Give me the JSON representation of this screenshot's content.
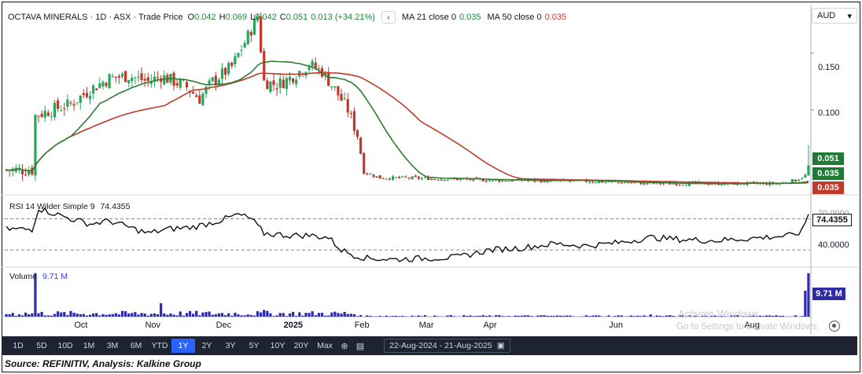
{
  "header": {
    "symbol": "OCTAVA MINERALS · 1D · ASX · Trade Price",
    "open_label": "O",
    "open": "0.042",
    "high_label": "H",
    "high": "0.069",
    "low_label": "L",
    "low": "0.042",
    "close_label": "C",
    "close": "0.051",
    "change": "0.013 (+34.21%)",
    "collapse_glyph": "‹",
    "ma21_label": "MA 21 close 0",
    "ma21_value": "0.035",
    "ma50_label": "MA 50 close 0",
    "ma50_value": "0.035"
  },
  "currency": {
    "label": "AUD",
    "glyph": "▾"
  },
  "price_tags": {
    "last": "0.051",
    "ma21": "0.035",
    "ma50": "0.035",
    "last_color": "#1e7a34",
    "ma21_color": "#1e7a34",
    "ma50_color": "#c0392b"
  },
  "rsi": {
    "label": "RSI 14 Wilder Simple 9",
    "value": "74.4355",
    "level_upper_label": "70.0000",
    "level_lower_label": "40.0000"
  },
  "volume": {
    "label": "Volume",
    "value": "9.71 M",
    "tag": "9.71 M",
    "bar_color": "#2c2ca8"
  },
  "toolbar": {
    "timeframes": [
      "1D",
      "5D",
      "10D",
      "1M",
      "3M",
      "6M",
      "YTD",
      "1Y",
      "2Y",
      "3Y",
      "5Y",
      "10Y",
      "20Y",
      "Max"
    ],
    "active": "1Y",
    "range": "22-Aug-2024 - 21-Aug-2025"
  },
  "watermark": {
    "line1": "Activate Windows",
    "line2": "Go to Settings to activate Windows."
  },
  "source": "Source: REFINITIV, Analysis: Kalkine Group",
  "chart_data": {
    "type": "candlestick",
    "y_ticks": [
      0.1,
      0.15
    ],
    "y_tick_labels": [
      "0.100",
      "0.150"
    ],
    "ylim": [
      0.025,
      0.19
    ],
    "x_tick_labels": [
      "Oct",
      "Nov",
      "Dec",
      "2025",
      "Feb",
      "Mar",
      "Apr",
      "Jun",
      "Aug"
    ],
    "x_tick_index": [
      24,
      46,
      68,
      89,
      111,
      131,
      151,
      190,
      232
    ],
    "n_bars": 250,
    "price_anchors": [
      [
        0,
        0.047
      ],
      [
        8,
        0.047
      ],
      [
        9,
        0.095
      ],
      [
        14,
        0.1
      ],
      [
        20,
        0.105
      ],
      [
        26,
        0.118
      ],
      [
        32,
        0.128
      ],
      [
        38,
        0.13
      ],
      [
        44,
        0.125
      ],
      [
        48,
        0.13
      ],
      [
        52,
        0.125
      ],
      [
        56,
        0.12
      ],
      [
        60,
        0.11
      ],
      [
        64,
        0.125
      ],
      [
        70,
        0.138
      ],
      [
        75,
        0.165
      ],
      [
        78,
        0.183
      ],
      [
        80,
        0.125
      ],
      [
        84,
        0.122
      ],
      [
        88,
        0.128
      ],
      [
        94,
        0.14
      ],
      [
        98,
        0.134
      ],
      [
        102,
        0.118
      ],
      [
        106,
        0.1
      ],
      [
        109,
        0.078
      ],
      [
        111,
        0.045
      ],
      [
        116,
        0.04
      ],
      [
        124,
        0.04
      ],
      [
        150,
        0.038
      ],
      [
        180,
        0.037
      ],
      [
        200,
        0.035
      ],
      [
        240,
        0.035
      ],
      [
        245,
        0.038
      ],
      [
        248,
        0.042
      ],
      [
        249,
        0.051
      ]
    ],
    "rsi_anchors": [
      [
        0,
        60
      ],
      [
        8,
        60
      ],
      [
        10,
        80
      ],
      [
        14,
        76
      ],
      [
        20,
        70
      ],
      [
        26,
        65
      ],
      [
        32,
        68
      ],
      [
        38,
        62
      ],
      [
        44,
        56
      ],
      [
        50,
        60
      ],
      [
        58,
        62
      ],
      [
        66,
        68
      ],
      [
        72,
        74
      ],
      [
        76,
        70
      ],
      [
        80,
        56
      ],
      [
        88,
        54
      ],
      [
        94,
        54
      ],
      [
        100,
        52
      ],
      [
        104,
        40
      ],
      [
        108,
        35
      ],
      [
        112,
        32
      ],
      [
        120,
        31
      ],
      [
        130,
        32
      ],
      [
        140,
        33
      ],
      [
        150,
        40
      ],
      [
        160,
        42
      ],
      [
        170,
        46
      ],
      [
        180,
        44
      ],
      [
        190,
        47
      ],
      [
        200,
        52
      ],
      [
        210,
        50
      ],
      [
        220,
        49
      ],
      [
        230,
        51
      ],
      [
        244,
        54
      ],
      [
        247,
        58
      ],
      [
        249,
        74.4355
      ]
    ],
    "rsi_levels": [
      70,
      40
    ],
    "rsi_ylim": [
      25,
      90
    ],
    "volume_spikes": [
      [
        9,
        9.71
      ],
      [
        48,
        3.0
      ],
      [
        80,
        1.5
      ],
      [
        200,
        0.5
      ],
      [
        248,
        5.8
      ],
      [
        249,
        9.71
      ]
    ],
    "volume_ylim": [
      0,
      10
    ],
    "ma21_color": "#2e7d32",
    "ma50_color": "#c0392b",
    "up_color": "#26a65b",
    "down_color": "#c0392b"
  }
}
